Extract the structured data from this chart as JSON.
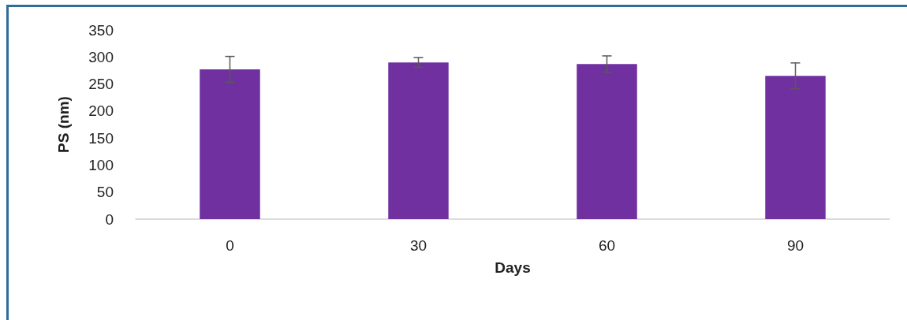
{
  "chart_data": {
    "type": "bar",
    "xlabel": "Days",
    "ylabel": "PS (nm)",
    "categories": [
      "0",
      "30",
      "60",
      "90"
    ],
    "values": [
      277,
      290,
      287,
      265
    ],
    "errors": [
      24,
      9,
      15,
      24
    ],
    "color": "#7030a0",
    "ylim": [
      0,
      350
    ],
    "yticks": [
      0,
      50,
      100,
      150,
      200,
      250,
      300,
      350
    ]
  }
}
